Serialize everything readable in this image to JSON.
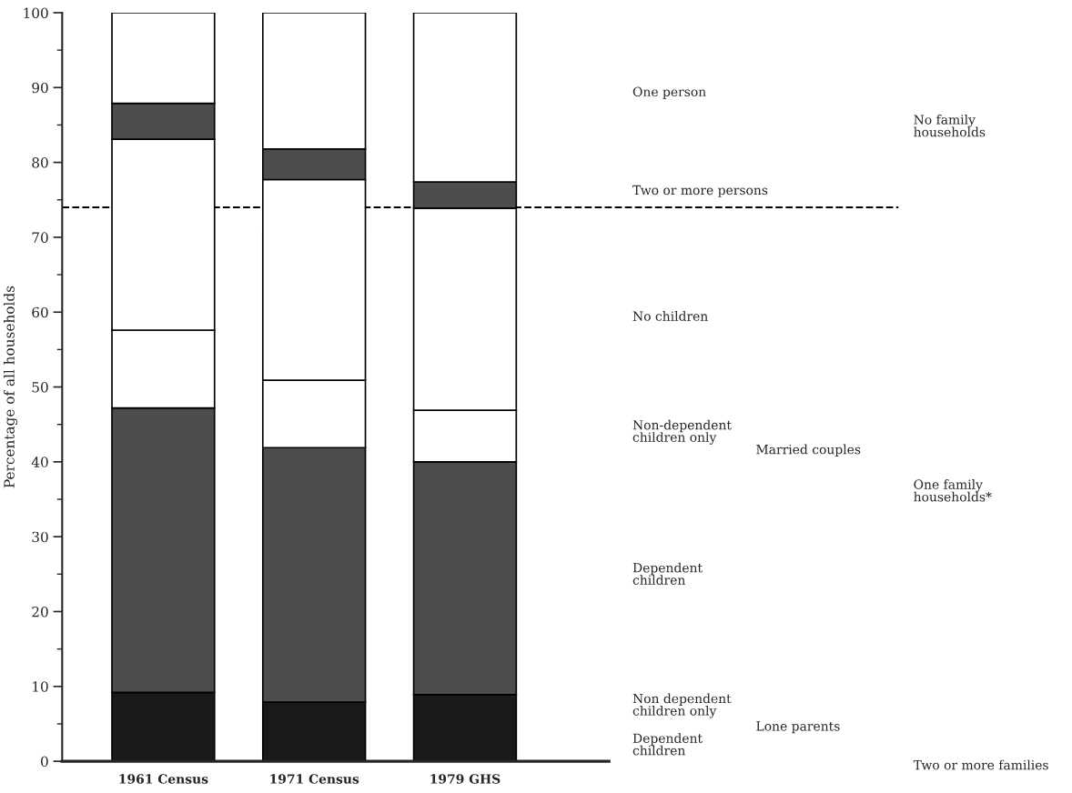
{
  "chart_data": {
    "type": "bar",
    "stacked": true,
    "ylabel": "Percentage of all households",
    "categories": [
      "1961 Census",
      "1971 Census",
      "1979 GHS"
    ],
    "series": [
      {
        "color": "#1a1a1a",
        "values": [
          9.2,
          7.9,
          8.9
        ]
      },
      {
        "color": "#4d4d4d",
        "values": [
          38.0,
          34.0,
          31.1
        ]
      },
      {
        "color": "#ffffff",
        "values": [
          10.4,
          9.0,
          6.9
        ]
      },
      {
        "color": "#ffffff",
        "values": [
          25.5,
          26.8,
          27.0
        ]
      },
      {
        "color": "#4d4d4d",
        "values": [
          4.8,
          4.1,
          3.5
        ]
      },
      {
        "color": "#ffffff",
        "values": [
          12.1,
          18.2,
          22.6
        ]
      }
    ],
    "ref_lines": [
      {
        "axis": "y",
        "value": 74,
        "line_style": "dashed",
        "color": "#000000"
      }
    ],
    "ylim": [
      0,
      100
    ],
    "yticks": [
      0,
      10,
      20,
      30,
      40,
      50,
      60,
      70,
      80,
      90,
      100
    ],
    "annotations": [
      "One person",
      "Two or more persons",
      "No children",
      "Non-dependent\nchildren only",
      "Dependent\nchildren",
      "Non dependent\nchildren only",
      "Dependent\nchildren",
      "Married couples",
      "Lone parents",
      "No family\nhouseholds",
      "One family\nhouseholds*",
      "Two or more families"
    ],
    "grid": false,
    "legend": false
  }
}
